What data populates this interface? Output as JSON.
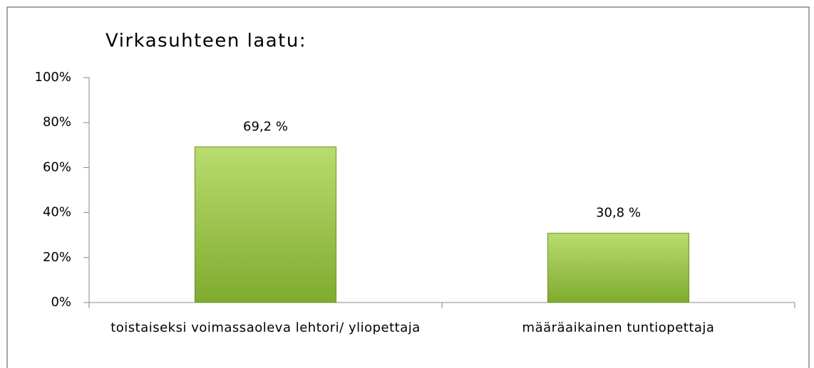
{
  "chart_data": {
    "type": "bar",
    "title": "Virkasuhteen laatu:",
    "categories": [
      "toistaiseksi voimassaoleva lehtori/ yliopettaja",
      "määräaikainen tuntiopettaja"
    ],
    "values": [
      69.2,
      30.8
    ],
    "value_labels": [
      "69,2 %",
      "30,8 %"
    ],
    "color": "#92c13f",
    "ylim": [
      0,
      100
    ],
    "yticks": [
      {
        "value": 0,
        "label": "0%"
      },
      {
        "value": 20,
        "label": "20%"
      },
      {
        "value": 40,
        "label": "40%"
      },
      {
        "value": 60,
        "label": "60%"
      },
      {
        "value": 80,
        "label": "80%"
      },
      {
        "value": 100,
        "label": "100%"
      }
    ],
    "grid": false
  }
}
